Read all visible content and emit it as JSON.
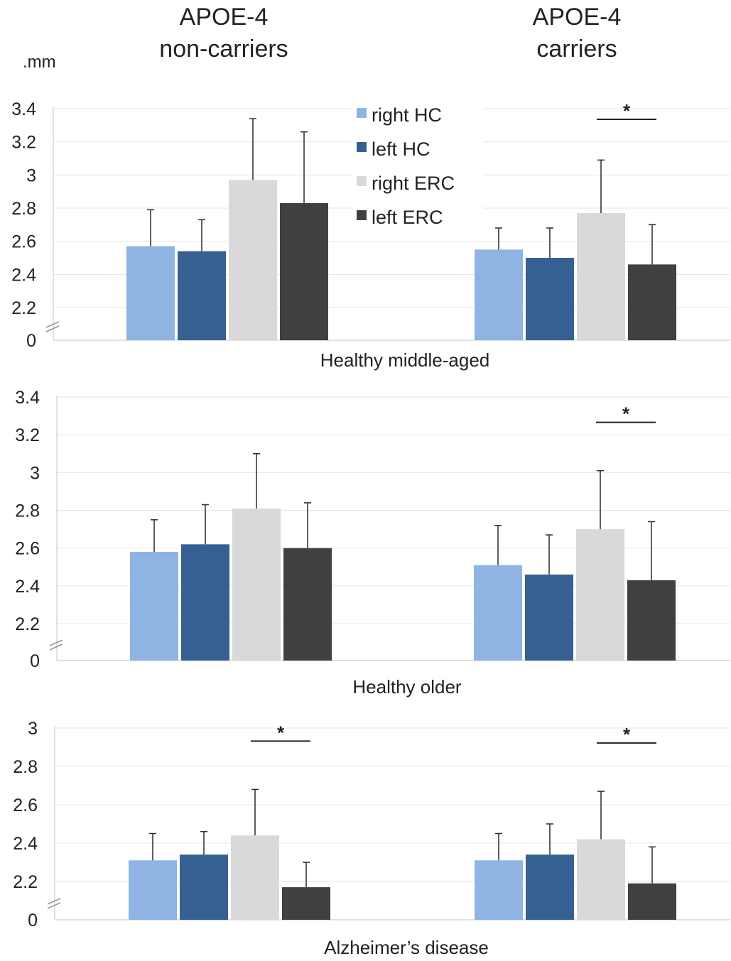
{
  "group_titles": [
    {
      "line1": "APOE-4",
      "line2": "non-carriers"
    },
    {
      "line1": "APOE-4",
      "line2": "carriers"
    }
  ],
  "unit_label": ".mm",
  "legend": [
    {
      "label": "right HC",
      "color": "#8fb4e3"
    },
    {
      "label": "left HC",
      "color": "#366092"
    },
    {
      "label": "right ERC",
      "color": "#d9d9d9"
    },
    {
      "label": "left ERC",
      "color": "#404040"
    }
  ],
  "significance_marker": "*",
  "chart_data": [
    {
      "type": "bar",
      "title": "Healthy middle-aged",
      "ylabel": ".mm",
      "yticks": [
        "0",
        "2.2",
        "2.4",
        "2.6",
        "2.8",
        "3",
        "3.2",
        "3.4"
      ],
      "ylim": [
        2.2,
        3.4
      ],
      "axis_break": true,
      "categories": [
        "APOE-4 non-carriers",
        "APOE-4 carriers"
      ],
      "series": [
        {
          "name": "right HC",
          "values": [
            2.57,
            2.55
          ],
          "errors": [
            0.22,
            0.13
          ]
        },
        {
          "name": "left HC",
          "values": [
            2.54,
            2.5
          ],
          "errors": [
            0.19,
            0.18
          ]
        },
        {
          "name": "right ERC",
          "values": [
            2.97,
            2.77
          ],
          "errors": [
            0.37,
            0.32
          ]
        },
        {
          "name": "left ERC",
          "values": [
            2.83,
            2.46
          ],
          "errors": [
            0.43,
            0.24
          ]
        }
      ],
      "significance": [
        {
          "category": "APOE-4 carriers",
          "between": [
            "right ERC",
            "left ERC"
          ],
          "marker": "*"
        }
      ]
    },
    {
      "type": "bar",
      "title": "Healthy older",
      "ylabel": ".mm",
      "yticks": [
        "0",
        "2.2",
        "2.4",
        "2.6",
        "2.8",
        "3",
        "3.2",
        "3.4"
      ],
      "ylim": [
        2.2,
        3.4
      ],
      "axis_break": true,
      "categories": [
        "APOE-4 non-carriers",
        "APOE-4 carriers"
      ],
      "series": [
        {
          "name": "right HC",
          "values": [
            2.58,
            2.51
          ],
          "errors": [
            0.17,
            0.21
          ]
        },
        {
          "name": "left HC",
          "values": [
            2.62,
            2.46
          ],
          "errors": [
            0.21,
            0.21
          ]
        },
        {
          "name": "right ERC",
          "values": [
            2.81,
            2.7
          ],
          "errors": [
            0.29,
            0.31
          ]
        },
        {
          "name": "left ERC",
          "values": [
            2.6,
            2.43
          ],
          "errors": [
            0.24,
            0.31
          ]
        }
      ],
      "significance": [
        {
          "category": "APOE-4 carriers",
          "between": [
            "right ERC",
            "left ERC"
          ],
          "marker": "*"
        }
      ]
    },
    {
      "type": "bar",
      "title": "Alzheimer’s disease",
      "ylabel": ".mm",
      "yticks": [
        "0",
        "2.2",
        "2.4",
        "2.6",
        "2.8",
        "3"
      ],
      "ylim": [
        2.2,
        3.0
      ],
      "axis_break": true,
      "categories": [
        "APOE-4 non-carriers",
        "APOE-4 carriers"
      ],
      "series": [
        {
          "name": "right HC",
          "values": [
            2.31,
            2.31
          ],
          "errors": [
            0.14,
            0.14
          ]
        },
        {
          "name": "left HC",
          "values": [
            2.34,
            2.34
          ],
          "errors": [
            0.12,
            0.16
          ]
        },
        {
          "name": "right ERC",
          "values": [
            2.44,
            2.42
          ],
          "errors": [
            0.24,
            0.25
          ]
        },
        {
          "name": "left ERC",
          "values": [
            2.17,
            2.19
          ],
          "errors": [
            0.13,
            0.19
          ]
        }
      ],
      "significance": [
        {
          "category": "APOE-4 non-carriers",
          "between": [
            "right ERC",
            "left ERC"
          ],
          "marker": "*"
        },
        {
          "category": "APOE-4 carriers",
          "between": [
            "right ERC",
            "left ERC"
          ],
          "marker": "*"
        }
      ]
    }
  ]
}
